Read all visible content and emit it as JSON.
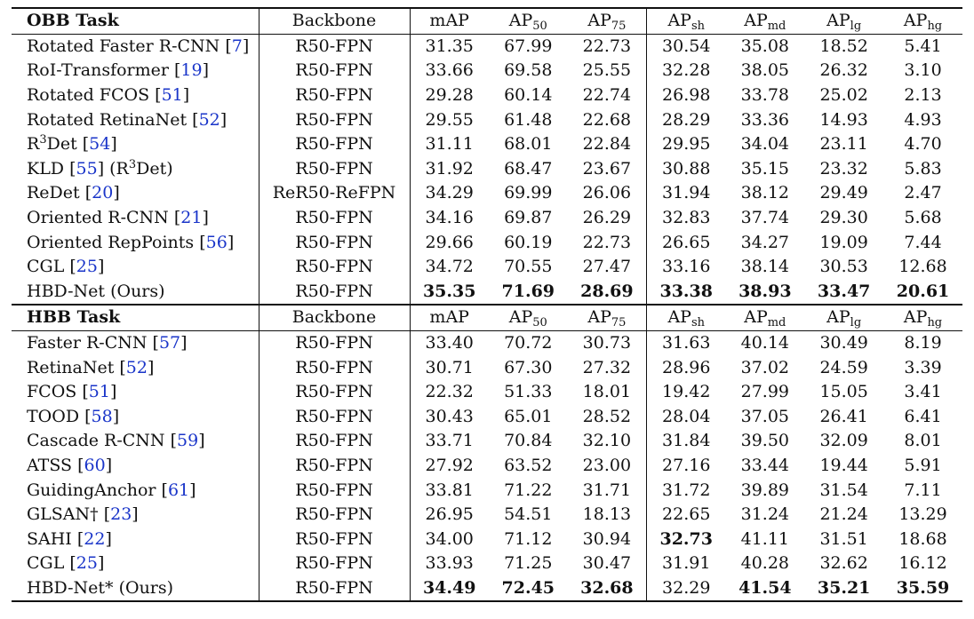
{
  "obb": {
    "header": {
      "task": "OBB Task",
      "backbone": "Backbone",
      "map": "mAP",
      "ap": "AP",
      "ap50_sub": "50",
      "ap75_sub": "75",
      "apsh_sub": "sh",
      "apmd_sub": "md",
      "aplg_sub": "lg",
      "aphg_sub": "hg"
    },
    "rows": [
      {
        "m1": "Rotated Faster R-CNN [",
        "ref1": "7",
        "m2": "]",
        "backbone": "R50-FPN",
        "v": [
          "31.35",
          "67.99",
          "22.73",
          "30.54",
          "35.08",
          "18.52",
          "5.41"
        ]
      },
      {
        "m1": "RoI-Transformer [",
        "ref1": "19",
        "m2": "]",
        "backbone": "R50-FPN",
        "v": [
          "33.66",
          "69.58",
          "25.55",
          "32.28",
          "38.05",
          "26.32",
          "3.10"
        ]
      },
      {
        "m1": "Rotated FCOS [",
        "ref1": "51",
        "m2": "]",
        "backbone": "R50-FPN",
        "v": [
          "29.28",
          "60.14",
          "22.74",
          "26.98",
          "33.78",
          "25.02",
          "2.13"
        ]
      },
      {
        "m1": "Rotated RetinaNet [",
        "ref1": "52",
        "m2": "]",
        "backbone": "R50-FPN",
        "v": [
          "29.55",
          "61.48",
          "22.68",
          "28.29",
          "33.36",
          "14.93",
          "4.93"
        ]
      },
      {
        "m1": "R",
        "sup": "3",
        "m1b": "Det [",
        "ref1": "54",
        "m2": "]",
        "backbone": "R50-FPN",
        "v": [
          "31.11",
          "68.01",
          "22.84",
          "29.95",
          "34.04",
          "23.11",
          "4.70"
        ]
      },
      {
        "m1": "KLD [",
        "ref1": "55",
        "m2": "] (R",
        "sup": "3",
        "m3": "Det)",
        "backbone": "R50-FPN",
        "v": [
          "31.92",
          "68.47",
          "23.67",
          "30.88",
          "35.15",
          "23.32",
          "5.83"
        ]
      },
      {
        "m1": "ReDet [",
        "ref1": "20",
        "m2": "]",
        "backbone": "ReR50-ReFPN",
        "v": [
          "34.29",
          "69.99",
          "26.06",
          "31.94",
          "38.12",
          "29.49",
          "2.47"
        ]
      },
      {
        "m1": "Oriented R-CNN [",
        "ref1": "21",
        "m2": "]",
        "backbone": "R50-FPN",
        "v": [
          "34.16",
          "69.87",
          "26.29",
          "32.83",
          "37.74",
          "29.30",
          "5.68"
        ]
      },
      {
        "m1": "Oriented RepPoints [",
        "ref1": "56",
        "m2": "]",
        "backbone": "R50-FPN",
        "v": [
          "29.66",
          "60.19",
          "22.73",
          "26.65",
          "34.27",
          "19.09",
          "7.44"
        ]
      },
      {
        "m1": "CGL [",
        "ref1": "25",
        "m2": "]",
        "backbone": "R50-FPN",
        "v": [
          "34.72",
          "70.55",
          "27.47",
          "33.16",
          "38.14",
          "30.53",
          "12.68"
        ]
      },
      {
        "m1": "HBD-Net (Ours)",
        "backbone": "R50-FPN",
        "v": [
          "35.35",
          "71.69",
          "28.69",
          "33.38",
          "38.93",
          "33.47",
          "20.61"
        ]
      }
    ]
  },
  "hbb": {
    "header": {
      "task": "HBB Task",
      "backbone": "Backbone",
      "map": "mAP",
      "ap": "AP",
      "ap50_sub": "50",
      "ap75_sub": "75",
      "apsh_sub": "sh",
      "apmd_sub": "md",
      "aplg_sub": "lg",
      "aphg_sub": "hg"
    },
    "rows": [
      {
        "m1": "Faster R-CNN [",
        "ref1": "57",
        "m2": "]",
        "backbone": "R50-FPN",
        "v": [
          "33.40",
          "70.72",
          "30.73",
          "31.63",
          "40.14",
          "30.49",
          "8.19"
        ]
      },
      {
        "m1": "RetinaNet [",
        "ref1": "52",
        "m2": "]",
        "backbone": "R50-FPN",
        "v": [
          "30.71",
          "67.30",
          "27.32",
          "28.96",
          "37.02",
          "24.59",
          "3.39"
        ]
      },
      {
        "m1": "FCOS [",
        "ref1": "51",
        "m2": "]",
        "backbone": "R50-FPN",
        "v": [
          "22.32",
          "51.33",
          "18.01",
          "19.42",
          "27.99",
          "15.05",
          "3.41"
        ]
      },
      {
        "m1": "TOOD [",
        "ref1": "58",
        "m2": "]",
        "backbone": "R50-FPN",
        "v": [
          "30.43",
          "65.01",
          "28.52",
          "28.04",
          "37.05",
          "26.41",
          "6.41"
        ]
      },
      {
        "m1": "Cascade R-CNN [",
        "ref1": "59",
        "m2": "]",
        "backbone": "R50-FPN",
        "v": [
          "33.71",
          "70.84",
          "32.10",
          "31.84",
          "39.50",
          "32.09",
          "8.01"
        ]
      },
      {
        "m1": "ATSS [",
        "ref1": "60",
        "m2": "]",
        "backbone": "R50-FPN",
        "v": [
          "27.92",
          "63.52",
          "23.00",
          "27.16",
          "33.44",
          "19.44",
          "5.91"
        ]
      },
      {
        "m1": "GuidingAnchor [",
        "ref1": "61",
        "m2": "]",
        "backbone": "R50-FPN",
        "v": [
          "33.81",
          "71.22",
          "31.71",
          "31.72",
          "39.89",
          "31.54",
          "7.11"
        ]
      },
      {
        "m1": "GLSAN† [",
        "ref1": "23",
        "m2": "]",
        "backbone": "R50-FPN",
        "v": [
          "26.95",
          "54.51",
          "18.13",
          "22.65",
          "31.24",
          "21.24",
          "13.29"
        ]
      },
      {
        "m1": "SAHI [",
        "ref1": "22",
        "m2": "]",
        "backbone": "R50-FPN",
        "v": [
          "34.00",
          "71.12",
          "30.94",
          "32.73",
          "41.11",
          "31.51",
          "18.68"
        ]
      },
      {
        "m1": "CGL [",
        "ref1": "25",
        "m2": "]",
        "backbone": "R50-FPN",
        "v": [
          "33.93",
          "71.25",
          "30.47",
          "31.91",
          "40.28",
          "32.62",
          "16.12"
        ]
      },
      {
        "m1": "HBD-Net* (Ours)",
        "backbone": "R50-FPN",
        "v": [
          "34.49",
          "72.45",
          "32.68",
          "32.29",
          "41.54",
          "35.21",
          "35.59"
        ]
      }
    ]
  }
}
